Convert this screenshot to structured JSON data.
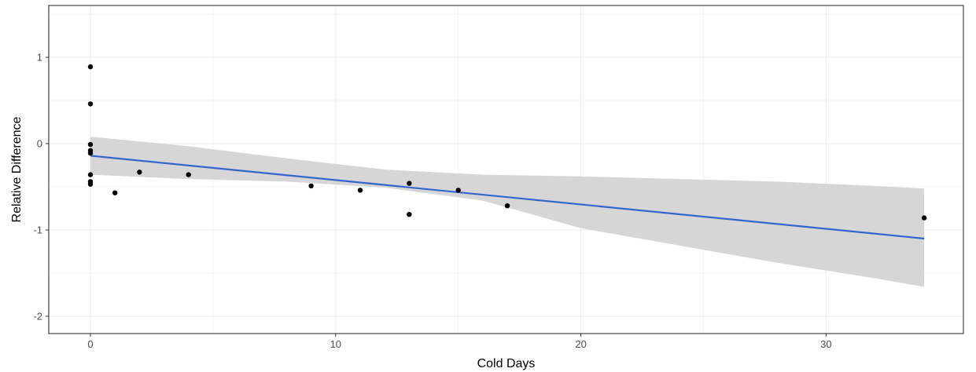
{
  "chart_data": {
    "type": "scatter",
    "title": "",
    "xlabel": "Cold Days",
    "ylabel": "Relative Difference",
    "xlim": [
      -1.7,
      35.6
    ],
    "ylim": [
      -2.2,
      1.6
    ],
    "grid": true,
    "x_ticks": [
      0,
      10,
      20,
      30
    ],
    "x_minor_ticks": [
      5,
      15,
      25
    ],
    "y_ticks": [
      -2,
      -1,
      0,
      1
    ],
    "y_minor_ticks": [
      -1.5,
      -0.5,
      0.5,
      1.5
    ],
    "points": [
      {
        "x": 0,
        "y": 0.89
      },
      {
        "x": 0,
        "y": 0.46
      },
      {
        "x": 0,
        "y": -0.01
      },
      {
        "x": 0,
        "y": -0.08
      },
      {
        "x": 0,
        "y": -0.11
      },
      {
        "x": 0,
        "y": -0.36
      },
      {
        "x": 0,
        "y": -0.44
      },
      {
        "x": 0,
        "y": -0.47
      },
      {
        "x": 1,
        "y": -0.57
      },
      {
        "x": 2,
        "y": -0.33
      },
      {
        "x": 4,
        "y": -0.36
      },
      {
        "x": 9,
        "y": -0.49
      },
      {
        "x": 11,
        "y": -0.54
      },
      {
        "x": 13,
        "y": -0.46
      },
      {
        "x": 13,
        "y": -0.82
      },
      {
        "x": 15,
        "y": -0.54
      },
      {
        "x": 17,
        "y": -0.72
      },
      {
        "x": 34,
        "y": -0.86
      }
    ],
    "fit_line": {
      "x": [
        0,
        34
      ],
      "y": [
        -0.14,
        -1.1
      ]
    },
    "confidence_band": {
      "x": [
        0,
        4,
        8,
        12,
        16,
        20,
        24,
        28,
        32,
        34
      ],
      "upper": [
        0.08,
        -0.03,
        -0.17,
        -0.3,
        -0.36,
        -0.38,
        -0.41,
        -0.44,
        -0.49,
        -0.52
      ],
      "lower": [
        -0.36,
        -0.41,
        -0.44,
        -0.51,
        -0.66,
        -0.98,
        -1.18,
        -1.38,
        -1.56,
        -1.66
      ]
    },
    "colors": {
      "points": "#000000",
      "fit_line": "#3366cc",
      "band": "#d4d4d4",
      "grid": "#ebebeb",
      "panel_border": "#333333"
    }
  }
}
